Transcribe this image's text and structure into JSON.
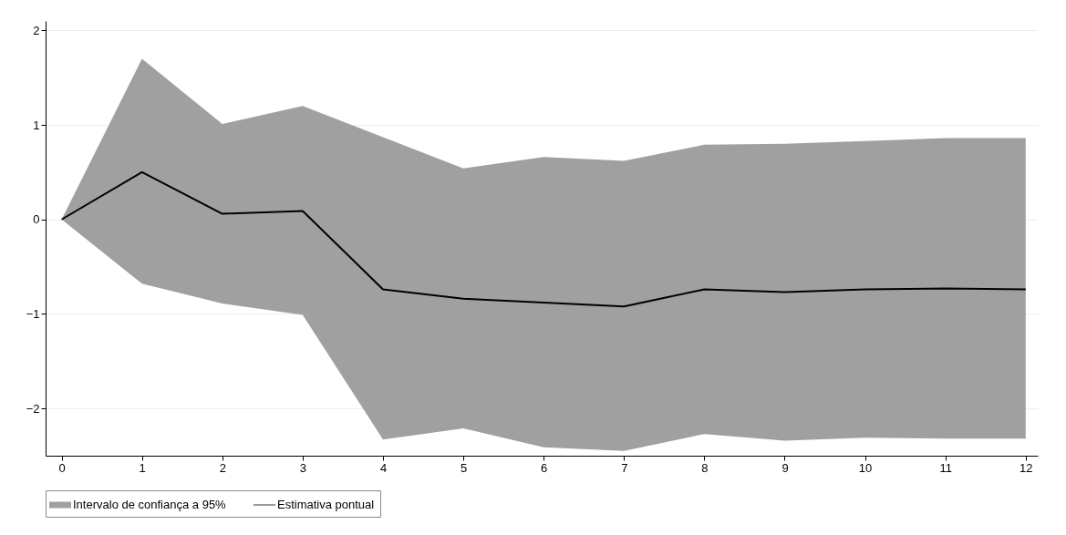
{
  "chart_data": {
    "type": "line",
    "x": [
      0,
      1,
      2,
      3,
      4,
      5,
      6,
      7,
      8,
      9,
      10,
      11,
      12
    ],
    "xlim": [
      -0.2,
      12.15
    ],
    "xticks": [
      0,
      1,
      2,
      3,
      4,
      5,
      6,
      7,
      8,
      9,
      10,
      11,
      12
    ],
    "ylim": [
      -2.5,
      2.1
    ],
    "yticks": [
      -2,
      -1,
      0,
      1,
      2
    ],
    "series": [
      {
        "name": "Estimativa pontual",
        "color": "#000000",
        "values": [
          0,
          0.5,
          0.06,
          0.09,
          -0.74,
          -0.84,
          -0.88,
          -0.92,
          -0.74,
          -0.77,
          -0.74,
          -0.73,
          -0.74
        ],
        "lower": [
          0,
          -0.68,
          -0.89,
          -1.01,
          -2.33,
          -2.21,
          -2.41,
          -2.45,
          -2.27,
          -2.34,
          -2.31,
          -2.32,
          -2.32
        ],
        "upper": [
          0,
          1.7,
          1.01,
          1.2,
          0.87,
          0.54,
          0.66,
          0.62,
          0.79,
          0.8,
          0.83,
          0.86,
          0.86
        ]
      }
    ],
    "annotations": [
      "Intervalo de confiança a 95%"
    ],
    "grid": "y",
    "legend": "bottom"
  }
}
